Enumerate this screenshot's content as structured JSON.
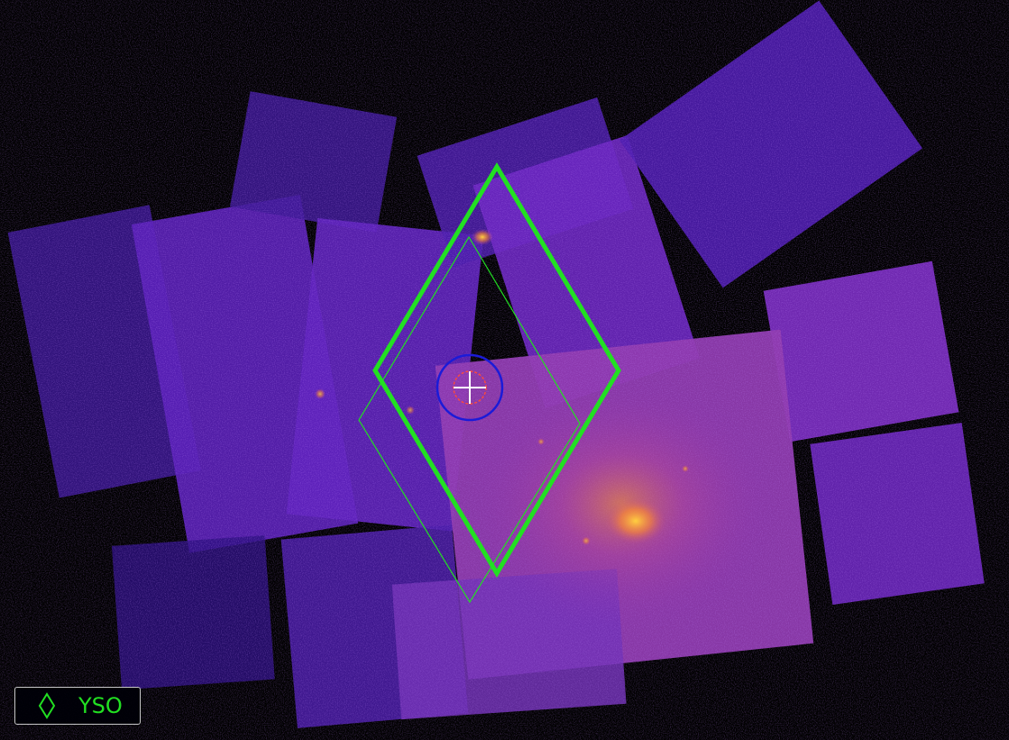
{
  "viewer": {
    "background_color": "#000000",
    "colormap": [
      "#2a0a8c",
      "#5a1fc2",
      "#8a2fb8",
      "#c0509a",
      "#e8844a",
      "#ffb020"
    ]
  },
  "overlays": {
    "yso_region": {
      "color": "#22e022",
      "shape": "diamond"
    },
    "blue_circle": {
      "color": "#1b1bd8"
    },
    "inner_circle": {
      "color": "#ff4a3a",
      "style": "dashed"
    },
    "crosshair": {
      "color": "#ffffff",
      "icon": "crosshair-icon"
    }
  },
  "legend": {
    "icon": "diamond-icon",
    "label": "YSO",
    "color": "#22e022"
  }
}
